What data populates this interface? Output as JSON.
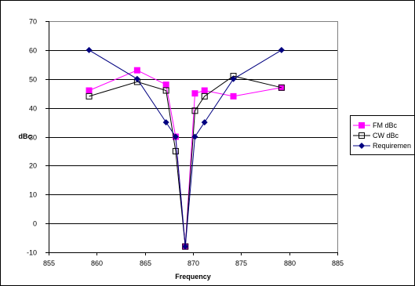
{
  "chart_data": {
    "type": "line",
    "xlabel": "Frequency",
    "ylabel": "dBc",
    "xlim": [
      855,
      885
    ],
    "ylim": [
      -10,
      70
    ],
    "x_ticks": [
      855,
      860,
      865,
      870,
      875,
      880,
      885
    ],
    "y_ticks": [
      -10,
      0,
      10,
      20,
      30,
      40,
      50,
      60,
      70
    ],
    "grid": "horizontal",
    "legend_position": "right",
    "series": [
      {
        "name": "FM dBc",
        "color": "#ff00ff",
        "marker": "filled-square",
        "points": [
          [
            859.2,
            46
          ],
          [
            864.2,
            53
          ],
          [
            867.2,
            48
          ],
          [
            868.2,
            30
          ],
          [
            869.2,
            -8
          ],
          [
            870.2,
            45
          ],
          [
            871.2,
            46
          ],
          [
            874.2,
            44
          ],
          [
            879.2,
            47
          ]
        ]
      },
      {
        "name": "CW dBc",
        "color": "#000000",
        "marker": "hollow-square",
        "points": [
          [
            859.2,
            44
          ],
          [
            864.2,
            49
          ],
          [
            867.2,
            46
          ],
          [
            868.2,
            25
          ],
          [
            869.2,
            -8
          ],
          [
            870.2,
            39
          ],
          [
            871.2,
            44
          ],
          [
            874.2,
            51
          ],
          [
            879.2,
            47
          ]
        ]
      },
      {
        "name": "Requiremen",
        "color": "#000080",
        "marker": "diamond",
        "points": [
          [
            859.2,
            60
          ],
          [
            864.2,
            50
          ],
          [
            867.2,
            35
          ],
          [
            868.2,
            30
          ],
          [
            869.2,
            -8
          ],
          [
            870.2,
            30
          ],
          [
            871.2,
            35
          ],
          [
            874.2,
            50
          ],
          [
            879.2,
            60
          ]
        ]
      }
    ]
  }
}
